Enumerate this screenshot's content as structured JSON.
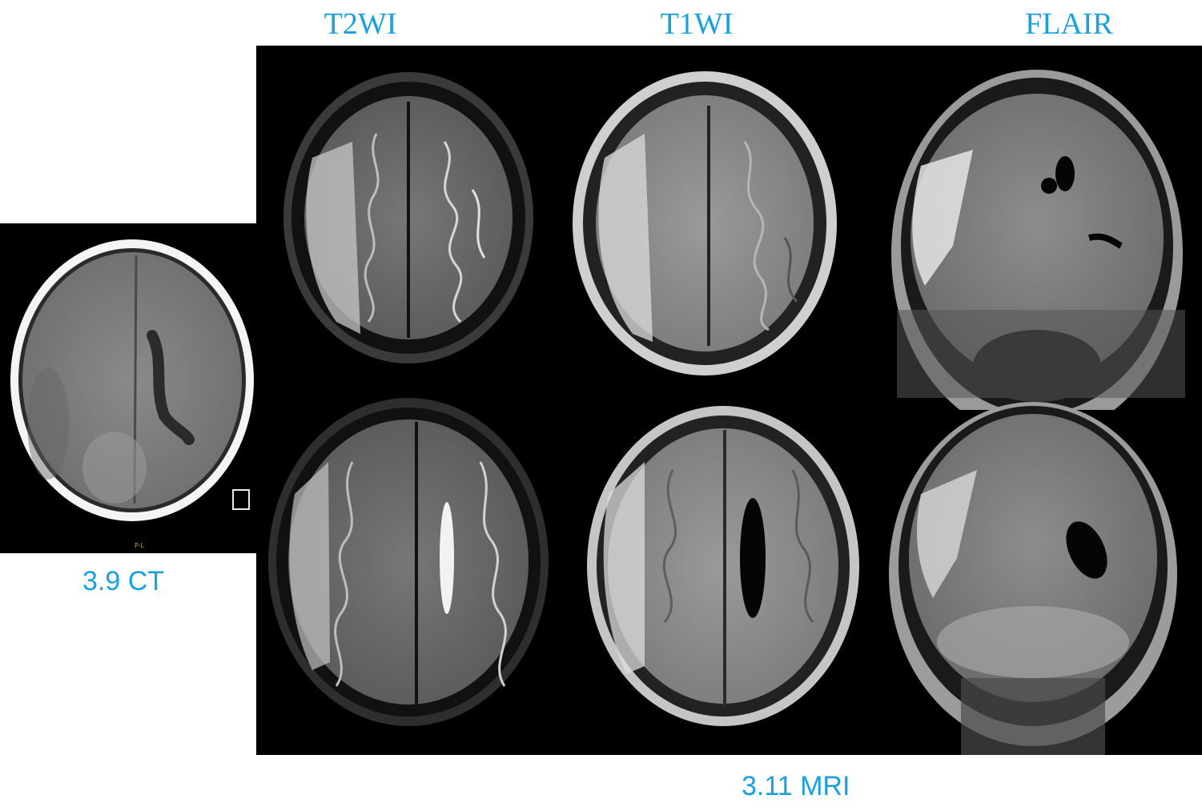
{
  "labels": {
    "t2wi": "T2WI",
    "t1wi": "T1WI",
    "flair": "FLAIR"
  },
  "captions": {
    "ct": "3.9 CT",
    "mri": "3.11 MRI"
  },
  "ct_marker": "P-L",
  "colors": {
    "accent": "#1aa0dc",
    "background": "#ffffff",
    "scan_background": "#000000"
  }
}
